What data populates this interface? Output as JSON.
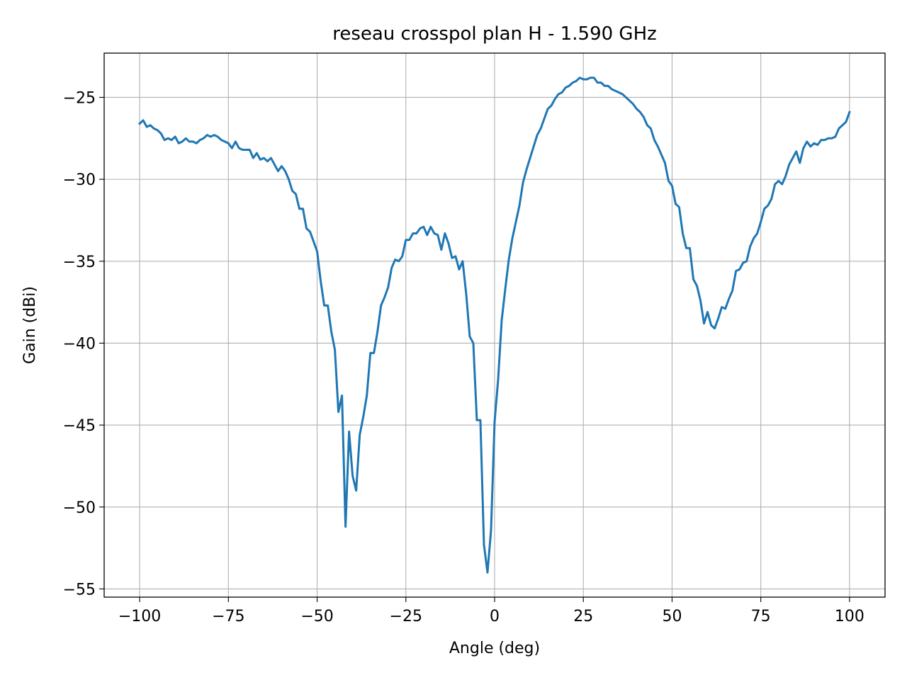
{
  "chart_data": {
    "type": "line",
    "title": "reseau crosspol plan H - 1.590 GHz",
    "xlabel": "Angle (deg)",
    "ylabel": "Gain (dBi)",
    "xlim": [
      -110,
      110
    ],
    "ylim": [
      -55.5,
      -22.3
    ],
    "xticks": [
      -100,
      -75,
      -50,
      -25,
      0,
      25,
      50,
      75,
      100
    ],
    "xtick_labels": [
      "−100",
      "−75",
      "−50",
      "−25",
      "0",
      "25",
      "50",
      "75",
      "100"
    ],
    "yticks": [
      -25,
      -30,
      -35,
      -40,
      -45,
      -50,
      -55
    ],
    "ytick_labels": [
      "−25",
      "−30",
      "−35",
      "−40",
      "−45",
      "−50",
      "−55"
    ],
    "grid": true,
    "legend": false,
    "series": [
      {
        "color": "#1f77b4",
        "points": [
          [
            -100,
            -26.6
          ],
          [
            -99,
            -26.4
          ],
          [
            -98,
            -26.8
          ],
          [
            -97,
            -26.7
          ],
          [
            -96,
            -26.9
          ],
          [
            -95,
            -27.0
          ],
          [
            -94,
            -27.2
          ],
          [
            -93,
            -27.6
          ],
          [
            -92,
            -27.5
          ],
          [
            -91,
            -27.6
          ],
          [
            -90,
            -27.4
          ],
          [
            -89,
            -27.8
          ],
          [
            -88,
            -27.7
          ],
          [
            -87,
            -27.5
          ],
          [
            -86,
            -27.7
          ],
          [
            -85,
            -27.7
          ],
          [
            -84,
            -27.8
          ],
          [
            -83,
            -27.6
          ],
          [
            -82,
            -27.5
          ],
          [
            -81,
            -27.3
          ],
          [
            -80,
            -27.4
          ],
          [
            -79,
            -27.3
          ],
          [
            -78,
            -27.4
          ],
          [
            -77,
            -27.6
          ],
          [
            -76,
            -27.7
          ],
          [
            -75,
            -27.8
          ],
          [
            -74,
            -28.1
          ],
          [
            -73,
            -27.7
          ],
          [
            -72,
            -28.1
          ],
          [
            -71,
            -28.2
          ],
          [
            -70,
            -28.2
          ],
          [
            -69,
            -28.2
          ],
          [
            -68,
            -28.7
          ],
          [
            -67,
            -28.4
          ],
          [
            -66,
            -28.8
          ],
          [
            -65,
            -28.7
          ],
          [
            -64,
            -28.9
          ],
          [
            -63,
            -28.7
          ],
          [
            -62,
            -29.1
          ],
          [
            -61,
            -29.5
          ],
          [
            -60,
            -29.2
          ],
          [
            -59,
            -29.5
          ],
          [
            -58,
            -30.0
          ],
          [
            -57,
            -30.7
          ],
          [
            -56,
            -30.9
          ],
          [
            -55,
            -31.8
          ],
          [
            -54,
            -31.8
          ],
          [
            -53,
            -33.0
          ],
          [
            -52,
            -33.2
          ],
          [
            -51,
            -33.8
          ],
          [
            -50,
            -34.4
          ],
          [
            -49,
            -36.2
          ],
          [
            -48,
            -37.7
          ],
          [
            -47,
            -37.7
          ],
          [
            -46,
            -39.3
          ],
          [
            -45,
            -40.4
          ],
          [
            -44,
            -44.2
          ],
          [
            -43,
            -43.2
          ],
          [
            -42,
            -51.2
          ],
          [
            -41,
            -45.4
          ],
          [
            -40,
            -48.1
          ],
          [
            -39,
            -49.0
          ],
          [
            -38,
            -45.6
          ],
          [
            -37,
            -44.5
          ],
          [
            -36,
            -43.2
          ],
          [
            -35,
            -40.6
          ],
          [
            -34,
            -40.6
          ],
          [
            -33,
            -39.3
          ],
          [
            -32,
            -37.7
          ],
          [
            -31,
            -37.2
          ],
          [
            -30,
            -36.6
          ],
          [
            -29,
            -35.4
          ],
          [
            -28,
            -34.9
          ],
          [
            -27,
            -35.0
          ],
          [
            -26,
            -34.7
          ],
          [
            -25,
            -33.7
          ],
          [
            -24,
            -33.7
          ],
          [
            -23,
            -33.3
          ],
          [
            -22,
            -33.3
          ],
          [
            -21,
            -33.0
          ],
          [
            -20,
            -32.9
          ],
          [
            -19,
            -33.4
          ],
          [
            -18,
            -32.9
          ],
          [
            -17,
            -33.3
          ],
          [
            -16,
            -33.4
          ],
          [
            -15,
            -34.3
          ],
          [
            -14,
            -33.3
          ],
          [
            -13,
            -33.9
          ],
          [
            -12,
            -34.8
          ],
          [
            -11,
            -34.7
          ],
          [
            -10,
            -35.5
          ],
          [
            -9,
            -35.0
          ],
          [
            -8,
            -37.0
          ],
          [
            -7,
            -39.6
          ],
          [
            -6,
            -40.0
          ],
          [
            -5,
            -44.7
          ],
          [
            -4,
            -44.7
          ],
          [
            -3,
            -52.3
          ],
          [
            -2,
            -54.0
          ],
          [
            -1,
            -51.4
          ],
          [
            0,
            -44.8
          ],
          [
            1,
            -42.2
          ],
          [
            2,
            -38.6
          ],
          [
            3,
            -36.7
          ],
          [
            4,
            -34.9
          ],
          [
            5,
            -33.6
          ],
          [
            6,
            -32.6
          ],
          [
            7,
            -31.6
          ],
          [
            8,
            -30.2
          ],
          [
            9,
            -29.4
          ],
          [
            10,
            -28.7
          ],
          [
            11,
            -28.0
          ],
          [
            12,
            -27.3
          ],
          [
            13,
            -26.9
          ],
          [
            14,
            -26.3
          ],
          [
            15,
            -25.7
          ],
          [
            16,
            -25.5
          ],
          [
            17,
            -25.1
          ],
          [
            18,
            -24.8
          ],
          [
            19,
            -24.7
          ],
          [
            20,
            -24.4
          ],
          [
            21,
            -24.3
          ],
          [
            22,
            -24.1
          ],
          [
            23,
            -24.0
          ],
          [
            24,
            -23.8
          ],
          [
            25,
            -23.9
          ],
          [
            26,
            -23.9
          ],
          [
            27,
            -23.8
          ],
          [
            28,
            -23.8
          ],
          [
            29,
            -24.1
          ],
          [
            30,
            -24.1
          ],
          [
            31,
            -24.3
          ],
          [
            32,
            -24.3
          ],
          [
            33,
            -24.5
          ],
          [
            34,
            -24.6
          ],
          [
            35,
            -24.7
          ],
          [
            36,
            -24.8
          ],
          [
            37,
            -25.0
          ],
          [
            38,
            -25.2
          ],
          [
            39,
            -25.4
          ],
          [
            40,
            -25.7
          ],
          [
            41,
            -25.9
          ],
          [
            42,
            -26.2
          ],
          [
            43,
            -26.7
          ],
          [
            44,
            -26.9
          ],
          [
            45,
            -27.6
          ],
          [
            46,
            -28.0
          ],
          [
            47,
            -28.5
          ],
          [
            48,
            -29.0
          ],
          [
            49,
            -30.1
          ],
          [
            50,
            -30.4
          ],
          [
            51,
            -31.5
          ],
          [
            52,
            -31.7
          ],
          [
            53,
            -33.3
          ],
          [
            54,
            -34.2
          ],
          [
            55,
            -34.2
          ],
          [
            56,
            -36.1
          ],
          [
            57,
            -36.5
          ],
          [
            58,
            -37.4
          ],
          [
            59,
            -38.8
          ],
          [
            60,
            -38.1
          ],
          [
            61,
            -38.9
          ],
          [
            62,
            -39.1
          ],
          [
            63,
            -38.5
          ],
          [
            64,
            -37.8
          ],
          [
            65,
            -37.9
          ],
          [
            66,
            -37.3
          ],
          [
            67,
            -36.8
          ],
          [
            68,
            -35.6
          ],
          [
            69,
            -35.5
          ],
          [
            70,
            -35.1
          ],
          [
            71,
            -35.0
          ],
          [
            72,
            -34.1
          ],
          [
            73,
            -33.6
          ],
          [
            74,
            -33.3
          ],
          [
            75,
            -32.6
          ],
          [
            76,
            -31.8
          ],
          [
            77,
            -31.6
          ],
          [
            78,
            -31.2
          ],
          [
            79,
            -30.3
          ],
          [
            80,
            -30.1
          ],
          [
            81,
            -30.3
          ],
          [
            82,
            -29.8
          ],
          [
            83,
            -29.1
          ],
          [
            84,
            -28.7
          ],
          [
            85,
            -28.3
          ],
          [
            86,
            -29.0
          ],
          [
            87,
            -28.1
          ],
          [
            88,
            -27.7
          ],
          [
            89,
            -28.0
          ],
          [
            90,
            -27.8
          ],
          [
            91,
            -27.9
          ],
          [
            92,
            -27.6
          ],
          [
            93,
            -27.6
          ],
          [
            94,
            -27.5
          ],
          [
            95,
            -27.5
          ],
          [
            96,
            -27.4
          ],
          [
            97,
            -26.9
          ],
          [
            98,
            -26.7
          ],
          [
            99,
            -26.5
          ],
          [
            100,
            -25.9
          ]
        ]
      }
    ]
  }
}
